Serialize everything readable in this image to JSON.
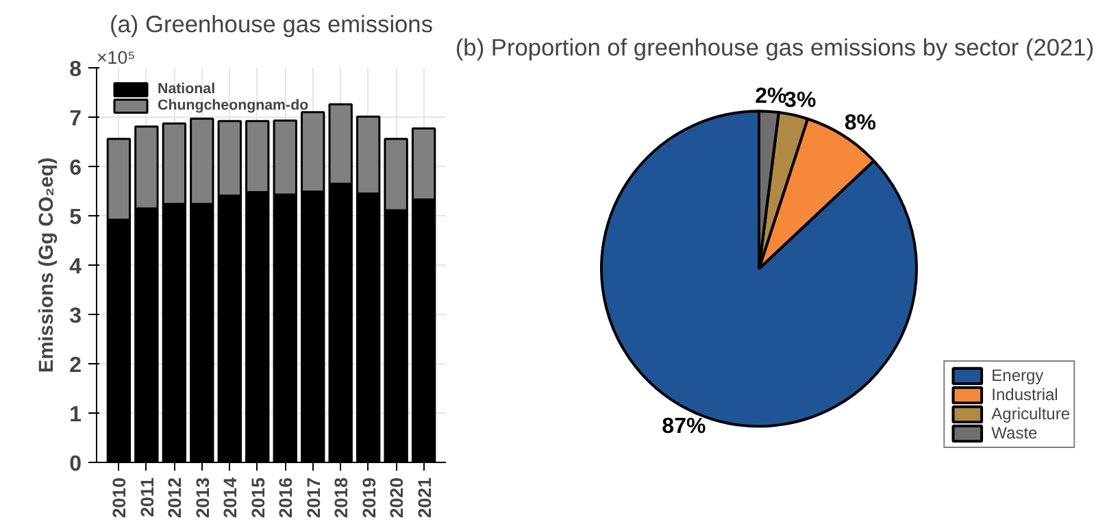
{
  "chart_data": [
    {
      "type": "bar",
      "title": "(a) Greenhouse gas emissions",
      "ylabel": "Emissions (Gg CO₂eq)",
      "annotations": [
        "×10⁵"
      ],
      "stacked": true,
      "categories": [
        "2010",
        "2011",
        "2012",
        "2013",
        "2014",
        "2015",
        "2016",
        "2017",
        "2018",
        "2019",
        "2020",
        "2021"
      ],
      "series": [
        {
          "name": "National",
          "color": "#000000",
          "values": [
            4.92,
            5.15,
            5.24,
            5.24,
            5.41,
            5.48,
            5.43,
            5.49,
            5.65,
            5.45,
            5.11,
            5.33
          ]
        },
        {
          "name": "Chungcheongnam-do",
          "color": "#808080",
          "values": [
            1.64,
            1.66,
            1.63,
            1.73,
            1.51,
            1.44,
            1.5,
            1.61,
            1.61,
            1.56,
            1.45,
            1.44
          ]
        }
      ],
      "ylim": [
        0,
        8
      ],
      "yticks": [
        0,
        1,
        2,
        3,
        4,
        5,
        6,
        7,
        8
      ],
      "grid": true,
      "legend": "top left"
    },
    {
      "type": "pie",
      "title": "(b) Proportion of greenhouse gas emissions by sector (2021)",
      "categories": [
        "Energy",
        "Industrial",
        "Agriculture",
        "Waste"
      ],
      "values": [
        87,
        8,
        3,
        2
      ],
      "colors": [
        "#1f5597",
        "#f5883a",
        "#b08a45",
        "#6e6e6e"
      ],
      "value_labels": [
        "87%",
        "8%",
        "3%",
        "2%"
      ],
      "legend": "bottom right"
    }
  ]
}
